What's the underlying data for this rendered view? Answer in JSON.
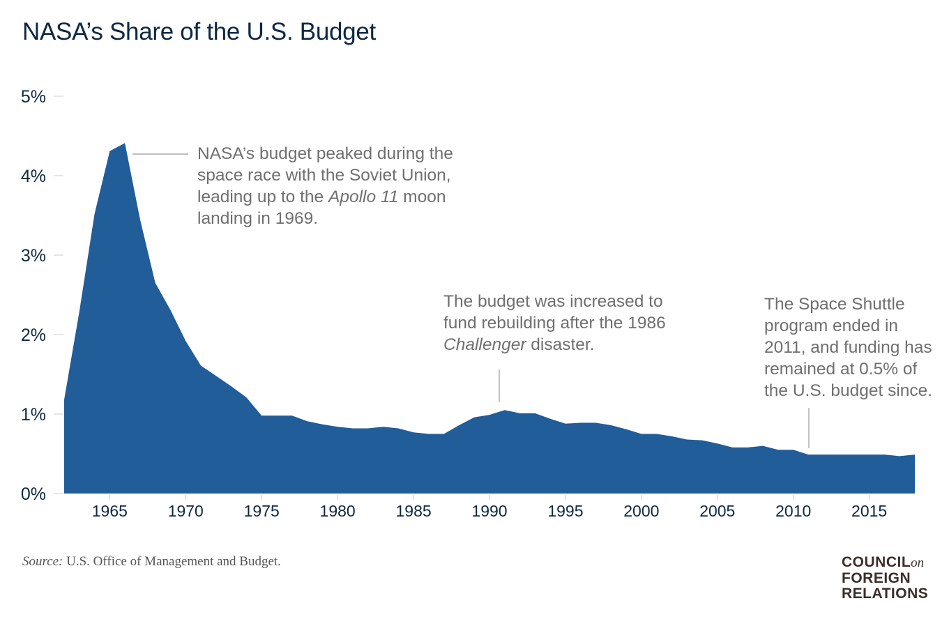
{
  "title": "NASA’s Share of the U.S. Budget",
  "colors": {
    "area": "#215d99",
    "text": "#0e2842",
    "annotation": "#6f6f6f",
    "leader": "#999999"
  },
  "chart_data": {
    "type": "area",
    "title": "NASA’s Share of the U.S. Budget",
    "xlabel": "",
    "ylabel": "",
    "xlim": [
      1962,
      2018
    ],
    "ylim": [
      0,
      5
    ],
    "x_ticks": [
      1965,
      1970,
      1975,
      1980,
      1985,
      1990,
      1995,
      2000,
      2005,
      2010,
      2015
    ],
    "x_tick_labels": [
      "1965",
      "1970",
      "1975",
      "1980",
      "1985",
      "1990",
      "1995",
      "2000",
      "2005",
      "2010",
      "2015"
    ],
    "y_ticks": [
      0,
      1,
      2,
      3,
      4,
      5
    ],
    "y_tick_labels": [
      "0%",
      "1%",
      "2%",
      "3%",
      "4%",
      "5%"
    ],
    "grid": false,
    "x": [
      1962,
      1963,
      1964,
      1965,
      1966,
      1967,
      1968,
      1969,
      1970,
      1971,
      1972,
      1973,
      1974,
      1975,
      1976,
      1977,
      1978,
      1979,
      1980,
      1981,
      1982,
      1983,
      1984,
      1985,
      1986,
      1987,
      1988,
      1989,
      1990,
      1991,
      1992,
      1993,
      1994,
      1995,
      1996,
      1997,
      1998,
      1999,
      2000,
      2001,
      2002,
      2003,
      2004,
      2005,
      2006,
      2007,
      2008,
      2009,
      2010,
      2011,
      2012,
      2013,
      2014,
      2015,
      2016,
      2017,
      2018
    ],
    "series": [
      {
        "values": [
          1.18,
          2.29,
          3.52,
          4.31,
          4.41,
          3.45,
          2.65,
          2.31,
          1.92,
          1.61,
          1.48,
          1.35,
          1.21,
          0.98,
          0.98,
          0.98,
          0.91,
          0.87,
          0.84,
          0.82,
          0.82,
          0.84,
          0.82,
          0.77,
          0.75,
          0.75,
          0.86,
          0.96,
          0.99,
          1.05,
          1.01,
          1.01,
          0.94,
          0.88,
          0.89,
          0.89,
          0.86,
          0.81,
          0.75,
          0.75,
          0.72,
          0.68,
          0.67,
          0.63,
          0.58,
          0.58,
          0.6,
          0.55,
          0.55,
          0.49,
          0.49,
          0.49,
          0.49,
          0.49,
          0.49,
          0.47,
          0.49
        ]
      }
    ],
    "annotations": [
      {
        "lines": [
          [
            {
              "t": "NASA’s budget peaked during the"
            }
          ],
          [
            {
              "t": "space race with the Soviet Union,"
            }
          ],
          [
            {
              "t": "leading up to the "
            },
            {
              "t": "Apollo 11",
              "i": true
            },
            {
              "t": " moon"
            }
          ],
          [
            {
              "t": "landing in 1969."
            }
          ]
        ]
      },
      {
        "lines": [
          [
            {
              "t": "The budget was increased to"
            }
          ],
          [
            {
              "t": "fund rebuilding after the 1986"
            }
          ],
          [
            {
              "t": "Challenger",
              "i": true
            },
            {
              "t": " disaster."
            }
          ]
        ]
      },
      {
        "lines": [
          [
            {
              "t": "The Space Shuttle"
            }
          ],
          [
            {
              "t": "program ended in"
            }
          ],
          [
            {
              "t": "2011, and funding has"
            }
          ],
          [
            {
              "t": "remained at 0.5% of"
            }
          ],
          [
            {
              "t": "the U.S. budget since."
            }
          ]
        ]
      }
    ]
  },
  "source": {
    "label": "Source:",
    "text": " U.S. Office of Management and Budget."
  },
  "logo": {
    "line1": "COUNCIL",
    "on": "on",
    "line2": "FOREIGN",
    "line3": "RELATIONS"
  }
}
